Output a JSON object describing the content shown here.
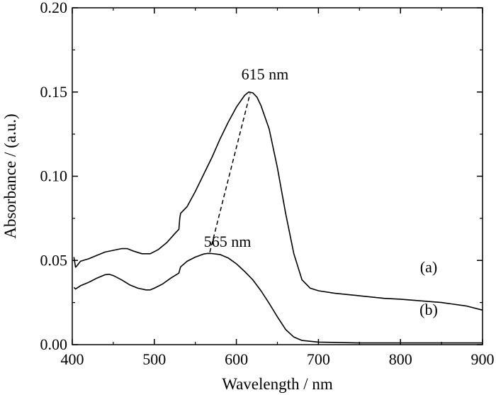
{
  "chart_data": {
    "type": "line",
    "title": "",
    "xlabel": "Wavelength / nm",
    "ylabel": "Absorbance / (a.u.)",
    "xlim": [
      400,
      900
    ],
    "ylim": [
      0.0,
      0.2
    ],
    "xticks": [
      400,
      500,
      600,
      700,
      800,
      900
    ],
    "xtick_labels": [
      "400",
      "500",
      "600",
      "700",
      "800",
      "900"
    ],
    "yticks": [
      0.0,
      0.05,
      0.1,
      0.15,
      0.2
    ],
    "ytick_labels": [
      "0.00",
      "0.05",
      "0.10",
      "0.15",
      "0.20"
    ],
    "grid": false,
    "series": [
      {
        "name": "(a)",
        "x": [
          402,
          404,
          406,
          410,
          420,
          430,
          440,
          450,
          460,
          467,
          475,
          485,
          495,
          505,
          515,
          525,
          530,
          531,
          532,
          540,
          550,
          560,
          570,
          580,
          590,
          600,
          610,
          615,
          620,
          625,
          630,
          640,
          650,
          660,
          670,
          680,
          690,
          700,
          720,
          750,
          780,
          800,
          850,
          880,
          900
        ],
        "y": [
          0.052,
          0.046,
          0.047,
          0.0495,
          0.051,
          0.053,
          0.055,
          0.056,
          0.057,
          0.057,
          0.0555,
          0.054,
          0.054,
          0.0565,
          0.0605,
          0.066,
          0.0685,
          0.075,
          0.078,
          0.082,
          0.091,
          0.101,
          0.111,
          0.122,
          0.132,
          0.141,
          0.148,
          0.15,
          0.1495,
          0.147,
          0.142,
          0.128,
          0.105,
          0.078,
          0.054,
          0.0385,
          0.0335,
          0.032,
          0.0305,
          0.029,
          0.0275,
          0.027,
          0.025,
          0.023,
          0.0205
        ]
      },
      {
        "name": "(b)",
        "x": [
          402,
          404,
          410,
          420,
          430,
          440,
          445,
          450,
          460,
          470,
          480,
          490,
          495,
          500,
          510,
          520,
          530,
          531,
          532,
          540,
          550,
          560,
          565,
          570,
          580,
          590,
          600,
          610,
          620,
          630,
          640,
          650,
          660,
          670,
          680,
          700,
          750,
          800,
          850,
          900
        ],
        "y": [
          0.034,
          0.033,
          0.035,
          0.037,
          0.0395,
          0.0415,
          0.0418,
          0.041,
          0.0385,
          0.0355,
          0.0335,
          0.0325,
          0.0325,
          0.0335,
          0.036,
          0.0395,
          0.0425,
          0.0445,
          0.0462,
          0.0495,
          0.052,
          0.0538,
          0.0542,
          0.0541,
          0.0535,
          0.0515,
          0.048,
          0.0435,
          0.0385,
          0.032,
          0.0245,
          0.0165,
          0.009,
          0.0045,
          0.0025,
          0.0015,
          0.001,
          0.001,
          0.001,
          0.001
        ]
      }
    ],
    "annotations": [
      {
        "text": "615 nm",
        "x": 615,
        "y": 0.15
      },
      {
        "text": "565 nm",
        "x": 565,
        "y": 0.054
      }
    ],
    "guide_line": {
      "style": "dashed",
      "from": [
        565,
        0.054
      ],
      "to": [
        615,
        0.15
      ]
    }
  }
}
